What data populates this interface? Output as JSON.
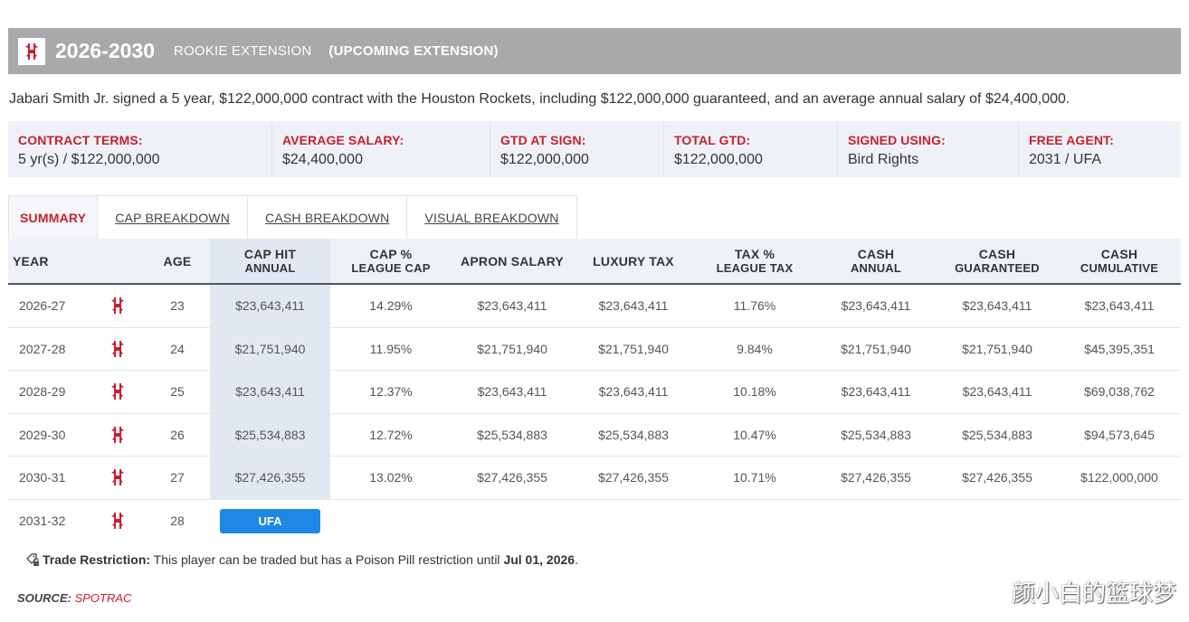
{
  "header": {
    "years": "2026-2030",
    "type": "ROOKIE EXTENSION",
    "upcoming": "(UPCOMING EXTENSION)"
  },
  "summary": "Jabari Smith Jr. signed a 5 year, $122,000,000 contract with the Houston Rockets, including $122,000,000 guaranteed, and an average annual salary of $24,400,000.",
  "terms": [
    {
      "label": "CONTRACT TERMS:",
      "value": "5 yr(s) / $122,000,000"
    },
    {
      "label": "AVERAGE SALARY:",
      "value": "$24,400,000"
    },
    {
      "label": "GTD AT SIGN:",
      "value": "$122,000,000"
    },
    {
      "label": "TOTAL GTD:",
      "value": "$122,000,000"
    },
    {
      "label": "SIGNED USING:",
      "value": "Bird Rights"
    },
    {
      "label": "FREE AGENT:",
      "value": "2031 / UFA"
    }
  ],
  "tabs": [
    "SUMMARY",
    "CAP BREAKDOWN",
    "CASH BREAKDOWN",
    "VISUAL BREAKDOWN"
  ],
  "columns": {
    "year": "YEAR",
    "age": "AGE",
    "cap_hit": [
      "CAP HIT",
      "ANNUAL"
    ],
    "cap_pct": [
      "CAP %",
      "LEAGUE CAP"
    ],
    "apron": "APRON SALARY",
    "luxury": "LUXURY TAX",
    "tax_pct": [
      "TAX %",
      "LEAGUE TAX"
    ],
    "cash_annual": [
      "CASH",
      "ANNUAL"
    ],
    "cash_gtd": [
      "CASH",
      "GUARANTEED"
    ],
    "cash_cum": [
      "CASH",
      "CUMULATIVE"
    ]
  },
  "rows": [
    {
      "year": "2026-27",
      "age": "23",
      "cap_hit": "$23,643,411",
      "cap_pct": "14.29%",
      "apron": "$23,643,411",
      "luxury": "$23,643,411",
      "tax_pct": "11.76%",
      "cash_annual": "$23,643,411",
      "cash_gtd": "$23,643,411",
      "cash_cum": "$23,643,411"
    },
    {
      "year": "2027-28",
      "age": "24",
      "cap_hit": "$21,751,940",
      "cap_pct": "11.95%",
      "apron": "$21,751,940",
      "luxury": "$21,751,940",
      "tax_pct": "9.84%",
      "cash_annual": "$21,751,940",
      "cash_gtd": "$21,751,940",
      "cash_cum": "$45,395,351"
    },
    {
      "year": "2028-29",
      "age": "25",
      "cap_hit": "$23,643,411",
      "cap_pct": "12.37%",
      "apron": "$23,643,411",
      "luxury": "$23,643,411",
      "tax_pct": "10.18%",
      "cash_annual": "$23,643,411",
      "cash_gtd": "$23,643,411",
      "cash_cum": "$69,038,762"
    },
    {
      "year": "2029-30",
      "age": "26",
      "cap_hit": "$25,534,883",
      "cap_pct": "12.72%",
      "apron": "$25,534,883",
      "luxury": "$25,534,883",
      "tax_pct": "10.47%",
      "cash_annual": "$25,534,883",
      "cash_gtd": "$25,534,883",
      "cash_cum": "$94,573,645"
    },
    {
      "year": "2030-31",
      "age": "27",
      "cap_hit": "$27,426,355",
      "cap_pct": "13.02%",
      "apron": "$27,426,355",
      "luxury": "$27,426,355",
      "tax_pct": "10.71%",
      "cash_annual": "$27,426,355",
      "cash_gtd": "$27,426,355",
      "cash_cum": "$122,000,000"
    }
  ],
  "fa_row": {
    "year": "2031-32",
    "age": "28",
    "badge": "UFA"
  },
  "restriction": {
    "label": "Trade Restriction:",
    "text": " This player can be traded but has a Poison Pill restriction until ",
    "date": "Jul 01, 2026",
    "end": "."
  },
  "source": {
    "label": "SOURCE:",
    "value": "SPOTRAC"
  },
  "watermark": "颜小白的篮球梦",
  "colors": {
    "accent": "#c8202f",
    "header_bg": "#a9a9a9",
    "badge": "#1e88e5"
  }
}
